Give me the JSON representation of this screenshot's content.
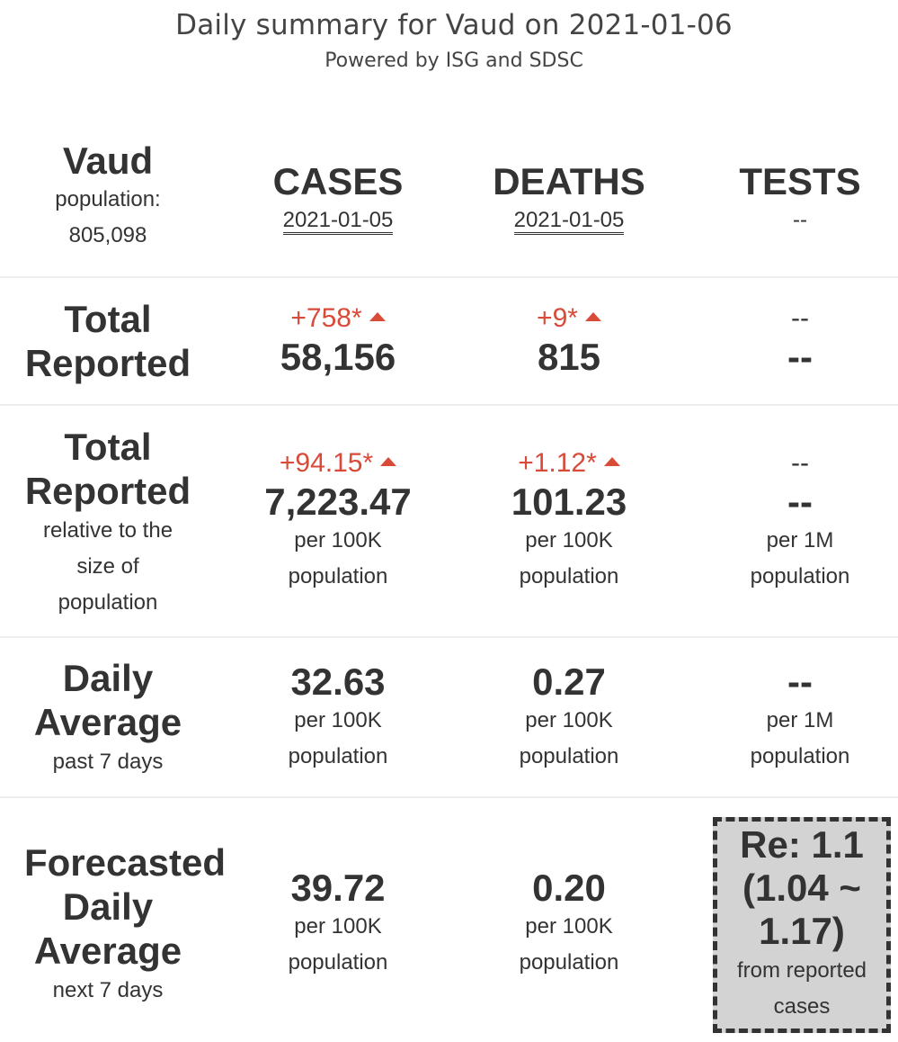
{
  "header": {
    "title": "Daily summary for Vaud on 2021-01-06",
    "subtitle": "Powered by ISG and SDSC"
  },
  "region": {
    "name": "Vaud",
    "population_label": "population:",
    "population": "805,098"
  },
  "columns": {
    "cases": {
      "label": "CASES",
      "date": "2021-01-05"
    },
    "deaths": {
      "label": "DEATHS",
      "date": "2021-01-05"
    },
    "tests": {
      "label": "TESTS",
      "date": "--"
    }
  },
  "rows": {
    "total_reported": {
      "label_line1": "Total",
      "label_line2": "Reported",
      "cases": {
        "delta": "+758*",
        "value": "58,156"
      },
      "deaths": {
        "delta": "+9*",
        "value": "815"
      },
      "tests": {
        "delta": "--",
        "value": "--"
      }
    },
    "relative": {
      "label_line1": "Total",
      "label_line2": "Reported",
      "note1": "relative to the",
      "note2": "size of",
      "note3": "population",
      "cases": {
        "delta": "+94.15*",
        "value": "7,223.47",
        "unit1": "per 100K",
        "unit2": "population"
      },
      "deaths": {
        "delta": "+1.12*",
        "value": "101.23",
        "unit1": "per 100K",
        "unit2": "population"
      },
      "tests": {
        "delta": "--",
        "value": "--",
        "unit1": "per 1M",
        "unit2": "population"
      }
    },
    "daily_average": {
      "label_line1": "Daily",
      "label_line2": "Average",
      "note": "past 7 days",
      "cases": {
        "value": "32.63",
        "unit1": "per 100K",
        "unit2": "population"
      },
      "deaths": {
        "value": "0.27",
        "unit1": "per 100K",
        "unit2": "population"
      },
      "tests": {
        "value": "--",
        "unit1": "per 1M",
        "unit2": "population"
      }
    },
    "forecast": {
      "label_line1": "Forecasted",
      "label_line2": "Daily",
      "label_line3": "Average",
      "note": "next 7 days",
      "cases": {
        "value": "39.72",
        "unit1": "per 100K",
        "unit2": "population"
      },
      "deaths": {
        "value": "0.20",
        "unit1": "per 100K",
        "unit2": "population"
      },
      "re": {
        "line1": "Re: 1.1",
        "line2": "(1.04 ~",
        "line3": "1.17)",
        "note1": "from reported",
        "note2": "cases"
      }
    }
  },
  "colors": {
    "delta_red": "#d94a38",
    "text": "#333333",
    "re_box_bg": "#d3d3d3",
    "divider": "#eeeeee"
  }
}
